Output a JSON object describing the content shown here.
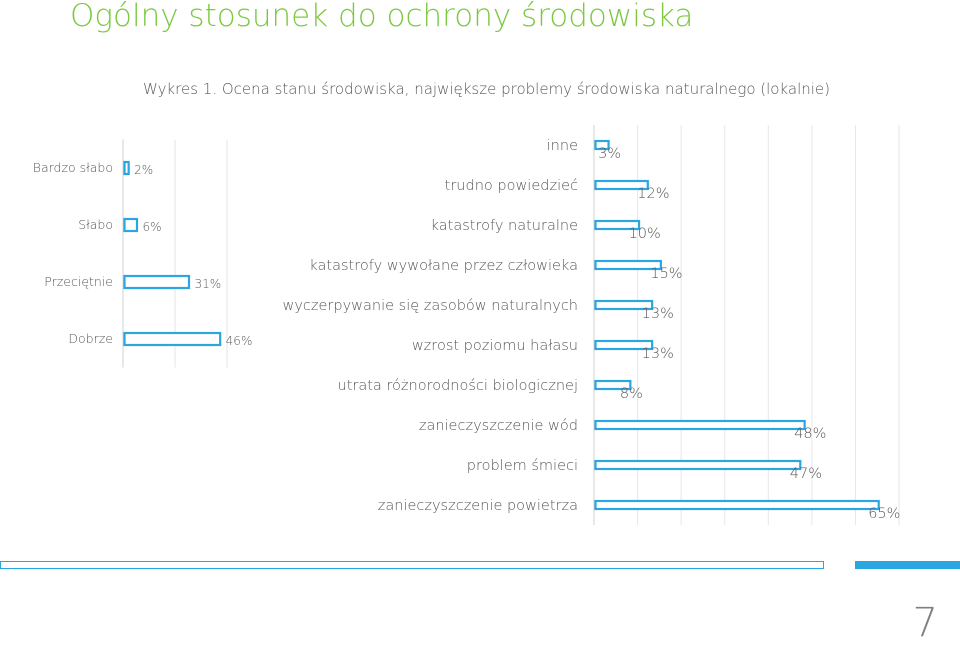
{
  "title": "Ogólny stosunek do ochrony środowiska",
  "caption": "Wykres 1. Ocena stanu środowiska, największe problemy środowiska naturalnego (lokalnie)",
  "page_number": "7",
  "colors": {
    "title": "#7cc940",
    "bar_outline": "#2aa6e0",
    "text": "#595959",
    "grid": "#e6e6e6"
  },
  "chart_data": [
    {
      "type": "bar",
      "orientation": "horizontal",
      "categories": [
        "Bardzo słabo",
        "Słabo",
        "Przeciętnie",
        "Dobrze"
      ],
      "values": [
        2,
        6,
        31,
        46
      ],
      "value_labels": [
        "2%",
        "6%",
        "31%",
        "46%"
      ],
      "xlim": [
        0,
        50
      ],
      "grid": true
    },
    {
      "type": "bar",
      "orientation": "horizontal",
      "categories": [
        "inne",
        "trudno powiedzieć",
        "katastrofy naturalne",
        "katastrofy wywołane przez człowieka",
        "wyczerpywanie się zasobów naturalnych",
        "wzrost poziomu hałasu",
        "utrata różnorodności biologicznej",
        "zanieczyszczenie wód",
        "problem śmieci",
        "zanieczyszczenie powietrza"
      ],
      "values": [
        3,
        12,
        10,
        15,
        13,
        13,
        8,
        48,
        47,
        65
      ],
      "value_labels": [
        "3%",
        "12%",
        "10%",
        "15%",
        "13%",
        "13%",
        "8%",
        "48%",
        "47%",
        "65%"
      ],
      "xlim": [
        0,
        70
      ],
      "grid": true
    }
  ]
}
